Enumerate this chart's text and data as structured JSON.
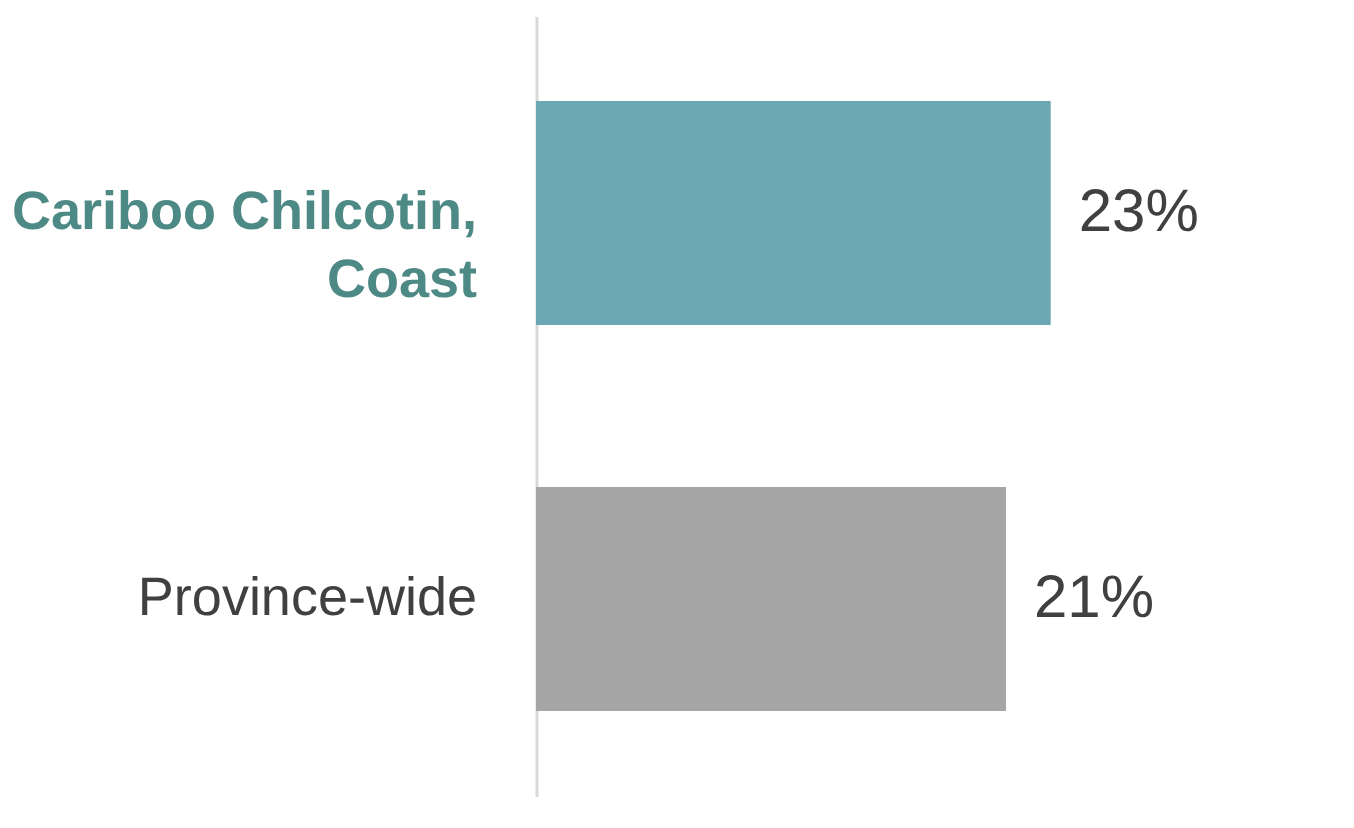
{
  "chart_data": {
    "type": "bar",
    "orientation": "horizontal",
    "categories": [
      "Cariboo Chilcotin, Coast",
      "Province-wide"
    ],
    "values": [
      23,
      21
    ],
    "colors": [
      "#6ca8b3",
      "#a6a6a6"
    ],
    "value_labels": [
      "23%",
      "21%"
    ],
    "grid": false,
    "legend": false
  }
}
